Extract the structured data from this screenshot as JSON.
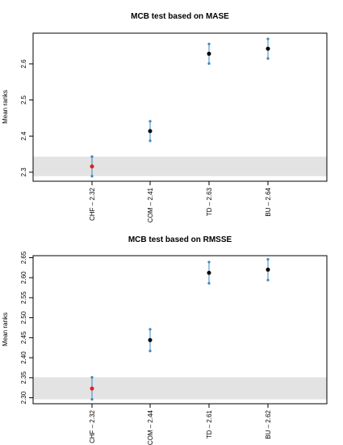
{
  "chart_data": [
    {
      "type": "scatter",
      "title": "MCB test based on MASE",
      "ylabel": "Mean ranks",
      "xlabel": "",
      "categories": [
        "CHF – 2.32",
        "COM – 2.41",
        "TD – 2.63",
        "BU – 2.64"
      ],
      "values": [
        2.316,
        2.414,
        2.628,
        2.642
      ],
      "lower": [
        2.289,
        2.387,
        2.601,
        2.615
      ],
      "upper": [
        2.343,
        2.441,
        2.655,
        2.669
      ],
      "best_index": 0,
      "band": [
        2.289,
        2.343
      ],
      "ylim": [
        2.275,
        2.685
      ],
      "yticks": [
        2.3,
        2.4,
        2.5,
        2.6
      ],
      "ytick_labels": [
        "2.3",
        "2.4",
        "2.5",
        "2.6"
      ]
    },
    {
      "type": "scatter",
      "title": "MCB test based on RMSSE",
      "ylabel": "Mean ranks",
      "xlabel": "",
      "categories": [
        "CHF – 2.32",
        "COM – 2.44",
        "TD – 2.61",
        "BU – 2.62"
      ],
      "values": [
        2.323,
        2.444,
        2.612,
        2.62
      ],
      "lower": [
        2.296,
        2.417,
        2.586,
        2.594
      ],
      "upper": [
        2.351,
        2.471,
        2.639,
        2.646
      ],
      "best_index": 0,
      "band": [
        2.296,
        2.351
      ],
      "ylim": [
        2.285,
        2.655
      ],
      "yticks": [
        2.3,
        2.35,
        2.4,
        2.45,
        2.5,
        2.55,
        2.6,
        2.65
      ],
      "ytick_labels": [
        "2.30",
        "2.35",
        "2.40",
        "2.45",
        "2.50",
        "2.55",
        "2.60",
        "2.65"
      ]
    }
  ],
  "colors": {
    "best": "#df2020",
    "point": "#000000",
    "interval": "#3a87c0",
    "band": "#e3e3e3"
  }
}
